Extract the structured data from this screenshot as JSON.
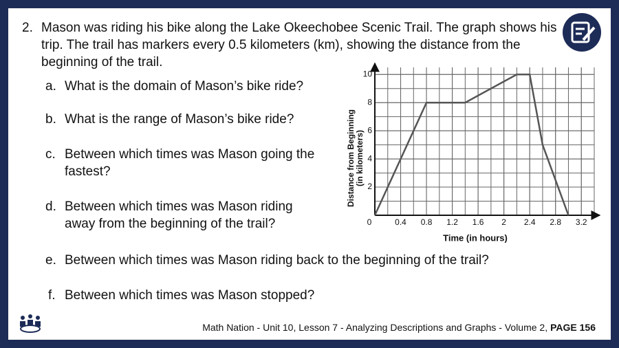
{
  "problem": {
    "number": "2.",
    "text": "Mason was riding his bike along the Lake Okeechobee Scenic Trail. The graph shows his trip. The trail has markers every 0.5 kilometers (km), showing the distance from the beginning of the trail."
  },
  "questions": [
    {
      "label": "a.",
      "text": "What is the domain of Mason’s bike ride?"
    },
    {
      "label": "b.",
      "text": "What is the range of Mason’s bike ride?"
    },
    {
      "label": "c.",
      "text": "Between which times was Mason going the fastest?"
    },
    {
      "label": "d.",
      "text": "Between which times was Mason riding away from the beginning of the trail?"
    },
    {
      "label": "e.",
      "text": "Between which times was Mason riding back to the beginning of the trail?"
    },
    {
      "label": "f.",
      "text": "Between which times was Mason stopped?"
    }
  ],
  "chart_data": {
    "type": "line",
    "x_label": "Time (in hours)",
    "y_label": [
      "Distance from Beginning",
      "(in kilometers)"
    ],
    "x": [
      0,
      0.8,
      1.4,
      2.2,
      2.4,
      2.6,
      3.0
    ],
    "values": [
      0,
      8,
      8,
      10,
      10,
      5,
      0
    ],
    "color": "#555555",
    "xlim": [
      0,
      3.4
    ],
    "ylim": [
      0,
      10.5
    ],
    "xticks": [
      0,
      0.4,
      0.8,
      1.2,
      1.6,
      2,
      2.4,
      2.8,
      3.2
    ],
    "yticks": [
      2,
      4,
      6,
      8,
      10
    ],
    "grid": true
  },
  "footer": {
    "text": "Math Nation - Unit 10, Lesson 7 - Analyzing Descriptions and Graphs - Volume 2,",
    "page": "PAGE 156"
  }
}
